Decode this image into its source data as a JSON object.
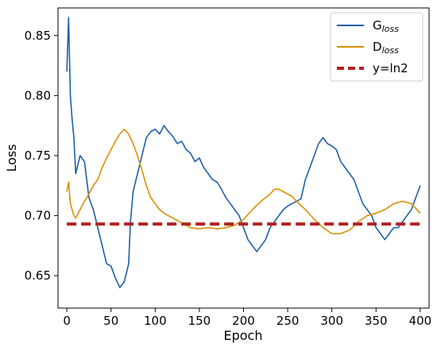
{
  "chart_data": {
    "type": "line",
    "title": "",
    "xlabel": "Epoch",
    "ylabel": "Loss",
    "xlim": [
      -10,
      410
    ],
    "ylim": [
      0.623,
      0.873
    ],
    "x_ticks": [
      0,
      50,
      100,
      150,
      200,
      250,
      300,
      350,
      400
    ],
    "x_tick_labels": [
      "0",
      "50",
      "100",
      "150",
      "200",
      "250",
      "300",
      "350",
      "400"
    ],
    "y_ticks": [
      0.65,
      0.7,
      0.75,
      0.8,
      0.85
    ],
    "y_tick_labels": [
      "0.65",
      "0.70",
      "0.75",
      "0.80",
      "0.85"
    ],
    "grid": false,
    "legend_position": "top-right",
    "series": [
      {
        "name": "G",
        "name_sub": "loss",
        "color": "#1f5fa8",
        "style": "solid",
        "x": [
          0,
          2,
          4,
          6,
          8,
          10,
          15,
          20,
          25,
          30,
          35,
          40,
          45,
          50,
          55,
          60,
          65,
          70,
          72,
          75,
          80,
          85,
          90,
          95,
          100,
          105,
          110,
          115,
          120,
          125,
          130,
          135,
          140,
          145,
          150,
          155,
          160,
          165,
          170,
          175,
          180,
          185,
          190,
          195,
          200,
          205,
          210,
          215,
          220,
          225,
          230,
          235,
          240,
          245,
          250,
          255,
          260,
          265,
          270,
          275,
          280,
          285,
          290,
          295,
          300,
          305,
          310,
          315,
          320,
          325,
          330,
          335,
          340,
          345,
          350,
          355,
          360,
          365,
          370,
          375,
          380,
          385,
          390,
          395,
          400
        ],
        "y": [
          0.82,
          0.865,
          0.8,
          0.78,
          0.765,
          0.735,
          0.75,
          0.745,
          0.715,
          0.705,
          0.69,
          0.675,
          0.66,
          0.658,
          0.648,
          0.64,
          0.645,
          0.66,
          0.695,
          0.72,
          0.735,
          0.75,
          0.765,
          0.77,
          0.772,
          0.768,
          0.775,
          0.77,
          0.766,
          0.76,
          0.762,
          0.755,
          0.752,
          0.745,
          0.748,
          0.74,
          0.735,
          0.73,
          0.728,
          0.722,
          0.715,
          0.71,
          0.705,
          0.7,
          0.69,
          0.68,
          0.675,
          0.67,
          0.675,
          0.68,
          0.69,
          0.695,
          0.7,
          0.705,
          0.708,
          0.71,
          0.712,
          0.714,
          0.73,
          0.74,
          0.75,
          0.76,
          0.765,
          0.76,
          0.758,
          0.755,
          0.745,
          0.74,
          0.735,
          0.73,
          0.72,
          0.71,
          0.705,
          0.7,
          0.69,
          0.685,
          0.68,
          0.685,
          0.69,
          0.69,
          0.695,
          0.7,
          0.705,
          0.715,
          0.725
        ]
      },
      {
        "name": "D",
        "name_sub": "loss",
        "color": "#d99000",
        "style": "solid",
        "x": [
          0,
          2,
          4,
          6,
          8,
          10,
          15,
          20,
          25,
          30,
          35,
          40,
          45,
          50,
          55,
          60,
          65,
          70,
          75,
          80,
          85,
          90,
          95,
          100,
          105,
          110,
          115,
          120,
          125,
          130,
          140,
          150,
          160,
          170,
          180,
          190,
          200,
          210,
          220,
          230,
          235,
          240,
          245,
          250,
          255,
          260,
          270,
          280,
          290,
          300,
          310,
          320,
          330,
          340,
          350,
          360,
          370,
          380,
          390,
          400
        ],
        "y": [
          0.72,
          0.728,
          0.71,
          0.705,
          0.7,
          0.698,
          0.705,
          0.712,
          0.718,
          0.725,
          0.73,
          0.74,
          0.748,
          0.755,
          0.762,
          0.768,
          0.772,
          0.768,
          0.76,
          0.75,
          0.738,
          0.725,
          0.715,
          0.71,
          0.705,
          0.702,
          0.7,
          0.698,
          0.696,
          0.694,
          0.69,
          0.689,
          0.69,
          0.689,
          0.69,
          0.692,
          0.697,
          0.705,
          0.712,
          0.718,
          0.722,
          0.722,
          0.72,
          0.718,
          0.716,
          0.712,
          0.705,
          0.697,
          0.69,
          0.685,
          0.685,
          0.688,
          0.695,
          0.7,
          0.702,
          0.705,
          0.71,
          0.712,
          0.71,
          0.702
        ]
      },
      {
        "name": "y=ln2",
        "color": "#b22222",
        "style": "dashed",
        "x": [
          0,
          400
        ],
        "y": [
          0.693,
          0.693
        ]
      }
    ]
  }
}
